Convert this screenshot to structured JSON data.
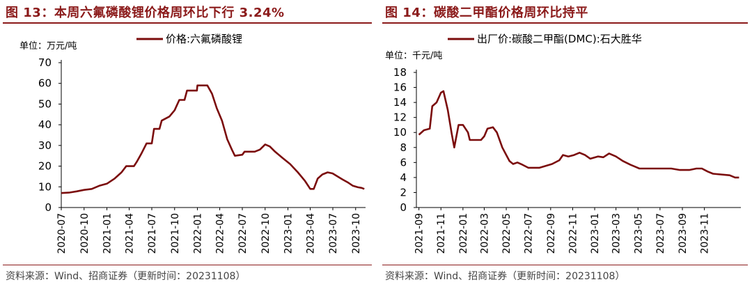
{
  "panels": [
    {
      "title": "图 13：本周六氟磷酸锂价格周环比下行 3.24%",
      "source": "资料来源：Wind、招商证券（更新时间：20231108）"
    },
    {
      "title": "图 14：碳酸二甲酯价格周环比持平",
      "source": "资料来源：Wind、招商证券（更新时间：20231108）"
    }
  ],
  "chart_data": [
    {
      "type": "line",
      "unit_label": "单位：万元/吨",
      "series": [
        {
          "name": "价格:六氟磷酸锂",
          "color": "#7b0c0c",
          "points": [
            [
              "2020-07-01",
              7.0
            ],
            [
              "2020-08-01",
              7.2
            ],
            [
              "2020-09-01",
              7.8
            ],
            [
              "2020-10-01",
              8.5
            ],
            [
              "2020-11-01",
              9.0
            ],
            [
              "2020-12-01",
              10.5
            ],
            [
              "2021-01-01",
              11.5
            ],
            [
              "2021-02-01",
              14.0
            ],
            [
              "2021-03-01",
              17.0
            ],
            [
              "2021-03-20",
              20.0
            ],
            [
              "2021-04-20",
              20.0
            ],
            [
              "2021-05-01",
              22.0
            ],
            [
              "2021-05-20",
              26.0
            ],
            [
              "2021-06-10",
              31.0
            ],
            [
              "2021-07-01",
              31.0
            ],
            [
              "2021-07-10",
              38.0
            ],
            [
              "2021-08-01",
              38.0
            ],
            [
              "2021-08-10",
              42.0
            ],
            [
              "2021-09-10",
              44.0
            ],
            [
              "2021-10-01",
              47.0
            ],
            [
              "2021-10-20",
              52.0
            ],
            [
              "2021-11-10",
              52.0
            ],
            [
              "2021-11-20",
              56.5
            ],
            [
              "2021-12-30",
              56.5
            ],
            [
              "2022-01-01",
              59.0
            ],
            [
              "2022-02-10",
              59.0
            ],
            [
              "2022-03-01",
              55.0
            ],
            [
              "2022-03-20",
              48.0
            ],
            [
              "2022-04-10",
              42.0
            ],
            [
              "2022-05-01",
              33.0
            ],
            [
              "2022-05-20",
              28.0
            ],
            [
              "2022-06-01",
              25.0
            ],
            [
              "2022-07-01",
              25.5
            ],
            [
              "2022-07-10",
              27.0
            ],
            [
              "2022-08-20",
              27.0
            ],
            [
              "2022-09-10",
              28.0
            ],
            [
              "2022-10-01",
              30.5
            ],
            [
              "2022-10-20",
              29.5
            ],
            [
              "2022-11-10",
              27.0
            ],
            [
              "2022-12-10",
              24.0
            ],
            [
              "2023-01-10",
              21.0
            ],
            [
              "2023-02-10",
              17.0
            ],
            [
              "2023-03-10",
              13.0
            ],
            [
              "2023-04-01",
              9.0
            ],
            [
              "2023-04-15",
              9.0
            ],
            [
              "2023-05-01",
              14.0
            ],
            [
              "2023-05-20",
              16.0
            ],
            [
              "2023-06-10",
              17.0
            ],
            [
              "2023-06-30",
              16.5
            ],
            [
              "2023-07-20",
              15.0
            ],
            [
              "2023-08-10",
              13.5
            ],
            [
              "2023-09-01",
              12.0
            ],
            [
              "2023-09-20",
              10.5
            ],
            [
              "2023-10-10",
              9.8
            ],
            [
              "2023-10-25",
              9.5
            ],
            [
              "2023-11-05",
              9.0
            ]
          ]
        }
      ],
      "xlim": [
        "2020-07-01",
        "2023-11-10"
      ],
      "ylim": [
        0,
        70
      ],
      "yticks": [
        0,
        10,
        20,
        30,
        40,
        50,
        60,
        70
      ],
      "xticks": [
        "2020-07",
        "2020-10",
        "2021-01",
        "2021-04",
        "2021-07",
        "2021-10",
        "2022-01",
        "2022-04",
        "2022-07",
        "2022-10",
        "2023-01",
        "2023-04",
        "2023-07",
        "2023-10"
      ],
      "legend_position": "top-center",
      "grid": false
    },
    {
      "type": "line",
      "unit_label": "单位：千元/吨",
      "series": [
        {
          "name": "出厂价:碳酸二甲酯(DMC):石大胜华",
          "color": "#7b0c0c",
          "points": [
            [
              "2021-09-01",
              9.7
            ],
            [
              "2021-09-15",
              10.3
            ],
            [
              "2021-10-01",
              10.5
            ],
            [
              "2021-10-08",
              13.5
            ],
            [
              "2021-10-20",
              14.0
            ],
            [
              "2021-11-01",
              15.3
            ],
            [
              "2021-11-08",
              15.5
            ],
            [
              "2021-11-20",
              13.0
            ],
            [
              "2021-12-01",
              9.8
            ],
            [
              "2021-12-08",
              8.0
            ],
            [
              "2021-12-20",
              11.0
            ],
            [
              "2022-01-01",
              11.0
            ],
            [
              "2022-01-15",
              10.0
            ],
            [
              "2022-01-20",
              9.0
            ],
            [
              "2022-02-20",
              9.0
            ],
            [
              "2022-03-01",
              9.5
            ],
            [
              "2022-03-10",
              10.5
            ],
            [
              "2022-03-25",
              10.7
            ],
            [
              "2022-04-05",
              10.0
            ],
            [
              "2022-04-20",
              8.0
            ],
            [
              "2022-05-01",
              7.0
            ],
            [
              "2022-05-10",
              6.2
            ],
            [
              "2022-05-20",
              5.8
            ],
            [
              "2022-06-01",
              6.0
            ],
            [
              "2022-06-15",
              5.7
            ],
            [
              "2022-07-01",
              5.3
            ],
            [
              "2022-08-01",
              5.3
            ],
            [
              "2022-08-15",
              5.5
            ],
            [
              "2022-09-05",
              5.8
            ],
            [
              "2022-09-25",
              6.3
            ],
            [
              "2022-10-05",
              7.0
            ],
            [
              "2022-10-20",
              6.8
            ],
            [
              "2022-11-05",
              7.0
            ],
            [
              "2022-11-20",
              7.3
            ],
            [
              "2022-12-05",
              7.0
            ],
            [
              "2022-12-20",
              6.5
            ],
            [
              "2023-01-10",
              6.8
            ],
            [
              "2023-01-25",
              6.7
            ],
            [
              "2023-02-10",
              7.2
            ],
            [
              "2023-03-01",
              6.8
            ],
            [
              "2023-03-20",
              6.2
            ],
            [
              "2023-04-10",
              5.7
            ],
            [
              "2023-04-25",
              5.4
            ],
            [
              "2023-05-05",
              5.2
            ],
            [
              "2023-07-01",
              5.2
            ],
            [
              "2023-08-01",
              5.2
            ],
            [
              "2023-08-25",
              5.0
            ],
            [
              "2023-09-20",
              5.0
            ],
            [
              "2023-10-10",
              5.2
            ],
            [
              "2023-10-25",
              5.2
            ],
            [
              "2023-11-10",
              4.8
            ],
            [
              "2023-11-25",
              4.5
            ],
            [
              "2024-01-10",
              4.3
            ],
            [
              "2024-01-25",
              4.0
            ],
            [
              "2024-02-05",
              4.0
            ]
          ]
        }
      ],
      "xlim": [
        "2021-08-25",
        "2024-02-10"
      ],
      "ylim": [
        0,
        18
      ],
      "yticks": [
        0,
        2,
        4,
        6,
        8,
        10,
        12,
        14,
        16,
        18
      ],
      "xticks": [
        "2021-09",
        "2021-11",
        "2022-01",
        "2022-03",
        "2022-05",
        "2022-07",
        "2022-09",
        "2022-11",
        "2023-01",
        "2023-03",
        "2023-05",
        "2023-07",
        "2023-09",
        "2023-11"
      ],
      "legend_position": "top-center",
      "grid": false
    }
  ]
}
